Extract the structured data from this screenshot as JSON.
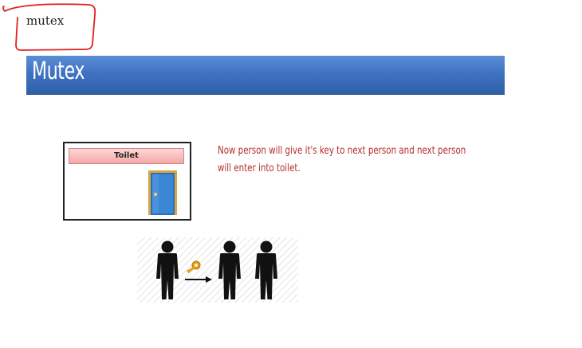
{
  "note": {
    "text": "mutex",
    "circle_color": "#e02020"
  },
  "slide": {
    "title": "Mutex",
    "banner_color": "#3f73c2",
    "toilet_sign": "Toilet",
    "caption": "Now person will give it's key to next person and next person will enter into toilet.",
    "caption_color": "#b3302a"
  },
  "illustration": {
    "icons": [
      "person-icon",
      "key-icon",
      "arrow-right-icon",
      "person-icon",
      "person-icon"
    ]
  }
}
